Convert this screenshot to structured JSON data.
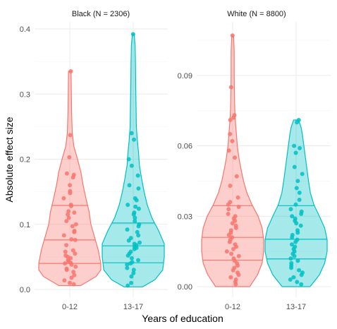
{
  "chart_data": {
    "type": "violin",
    "xlabel": "Years of education",
    "ylabel": "Absolute effect size",
    "categories": [
      "0-12",
      "13-17"
    ],
    "colors": {
      "0-12": "#F8766D",
      "13-17": "#00BFC4"
    },
    "fill_alpha": 0.35,
    "grid": true,
    "quantile_lines": [
      0.25,
      0.5,
      0.75
    ],
    "panels": [
      {
        "title": "Black (N = 2306)",
        "ylim": [
          0,
          0.4
        ],
        "yticks": [
          0.0,
          0.1,
          0.2,
          0.3,
          0.4
        ],
        "ytick_labels": [
          "0.0",
          "0.1",
          "0.2",
          "0.3",
          "0.4"
        ],
        "groups": [
          {
            "category": "0-12",
            "quantiles": [
              0.04,
              0.076,
              0.129
            ],
            "density": [
              [
                0.006,
                0.35
              ],
              [
                0.02,
                0.85
              ],
              [
                0.03,
                1.0
              ],
              [
                0.04,
                1.0
              ],
              [
                0.06,
                0.92
              ],
              [
                0.08,
                0.8
              ],
              [
                0.1,
                0.68
              ],
              [
                0.12,
                0.62
              ],
              [
                0.14,
                0.52
              ],
              [
                0.16,
                0.43
              ],
              [
                0.18,
                0.36
              ],
              [
                0.2,
                0.25
              ],
              [
                0.22,
                0.13
              ],
              [
                0.24,
                0.08
              ],
              [
                0.27,
                0.06
              ],
              [
                0.3,
                0.05
              ],
              [
                0.335,
                0.04
              ]
            ],
            "points": [
              0.335,
              0.237,
              0.203,
              0.178,
              0.176,
              0.172,
              0.16,
              0.151,
              0.148,
              0.14,
              0.13,
              0.128,
              0.12,
              0.118,
              0.115,
              0.11,
              0.105,
              0.1,
              0.097,
              0.09,
              0.088,
              0.083,
              0.077,
              0.076,
              0.068,
              0.06,
              0.058,
              0.055,
              0.052,
              0.05,
              0.048,
              0.045,
              0.043,
              0.041,
              0.04,
              0.038,
              0.035,
              0.032,
              0.03,
              0.027,
              0.022,
              0.018,
              0.014,
              0.01,
              0.008
            ]
          },
          {
            "category": "13-17",
            "quantiles": [
              0.041,
              0.067,
              0.102
            ],
            "density": [
              [
                0.004,
                0.3
              ],
              [
                0.015,
                0.7
              ],
              [
                0.03,
                0.95
              ],
              [
                0.05,
                1.0
              ],
              [
                0.07,
                1.0
              ],
              [
                0.09,
                0.82
              ],
              [
                0.11,
                0.6
              ],
              [
                0.13,
                0.45
              ],
              [
                0.15,
                0.35
              ],
              [
                0.17,
                0.27
              ],
              [
                0.19,
                0.2
              ],
              [
                0.21,
                0.17
              ],
              [
                0.23,
                0.13
              ],
              [
                0.25,
                0.1
              ],
              [
                0.28,
                0.09
              ],
              [
                0.31,
                0.08
              ],
              [
                0.35,
                0.07
              ],
              [
                0.375,
                0.06
              ],
              [
                0.392,
                0.03
              ]
            ],
            "points": [
              0.392,
              0.24,
              0.23,
              0.2,
              0.19,
              0.175,
              0.16,
              0.155,
              0.14,
              0.137,
              0.13,
              0.127,
              0.124,
              0.118,
              0.115,
              0.11,
              0.105,
              0.1,
              0.097,
              0.092,
              0.088,
              0.083,
              0.079,
              0.075,
              0.072,
              0.07,
              0.068,
              0.066,
              0.064,
              0.062,
              0.058,
              0.055,
              0.052,
              0.048,
              0.045,
              0.042,
              0.04,
              0.038,
              0.033,
              0.03,
              0.025,
              0.02,
              0.01,
              0.006
            ]
          }
        ]
      },
      {
        "title": "White (N = 8800)",
        "ylim": [
          0,
          0.108
        ],
        "yticks": [
          0.0,
          0.03,
          0.06,
          0.09
        ],
        "ytick_labels": [
          "0.00",
          "0.03",
          "0.06",
          "0.09"
        ],
        "groups": [
          {
            "category": "0-12",
            "quantiles": [
              0.0113,
              0.021,
              0.0345
            ],
            "density": [
              [
                0.0,
                0.55
              ],
              [
                0.005,
                0.8
              ],
              [
                0.01,
                0.95
              ],
              [
                0.015,
                1.0
              ],
              [
                0.02,
                1.0
              ],
              [
                0.025,
                0.95
              ],
              [
                0.03,
                0.82
              ],
              [
                0.035,
                0.62
              ],
              [
                0.04,
                0.46
              ],
              [
                0.045,
                0.35
              ],
              [
                0.05,
                0.27
              ],
              [
                0.055,
                0.2
              ],
              [
                0.06,
                0.15
              ],
              [
                0.065,
                0.12
              ],
              [
                0.07,
                0.09
              ],
              [
                0.075,
                0.07
              ],
              [
                0.08,
                0.06
              ],
              [
                0.09,
                0.05
              ],
              [
                0.1,
                0.05
              ],
              [
                0.107,
                0.03
              ]
            ],
            "points": [
              0.107,
              0.085,
              0.073,
              0.072,
              0.071,
              0.065,
              0.062,
              0.058,
              0.055,
              0.047,
              0.043,
              0.038,
              0.036,
              0.035,
              0.034,
              0.033,
              0.031,
              0.03,
              0.029,
              0.028,
              0.027,
              0.026,
              0.025,
              0.024,
              0.023,
              0.022,
              0.021,
              0.02,
              0.019,
              0.018,
              0.017,
              0.016,
              0.015,
              0.014,
              0.013,
              0.012,
              0.011,
              0.01,
              0.009,
              0.008,
              0.007,
              0.006,
              0.005,
              0.004,
              0.003,
              0.002,
              0.001
            ]
          },
          {
            "category": "13-17",
            "quantiles": [
              0.0118,
              0.0202,
              0.0345
            ],
            "density": [
              [
                0.0,
                0.45
              ],
              [
                0.005,
                0.75
              ],
              [
                0.01,
                0.92
              ],
              [
                0.015,
                1.0
              ],
              [
                0.02,
                1.0
              ],
              [
                0.025,
                0.92
              ],
              [
                0.03,
                0.75
              ],
              [
                0.035,
                0.57
              ],
              [
                0.04,
                0.46
              ],
              [
                0.045,
                0.4
              ],
              [
                0.05,
                0.35
              ],
              [
                0.055,
                0.3
              ],
              [
                0.06,
                0.25
              ],
              [
                0.065,
                0.2
              ],
              [
                0.068,
                0.16
              ],
              [
                0.071,
                0.08
              ]
            ],
            "points": [
              0.071,
              0.07,
              0.06,
              0.059,
              0.057,
              0.051,
              0.048,
              0.045,
              0.042,
              0.04,
              0.037,
              0.035,
              0.033,
              0.032,
              0.031,
              0.03,
              0.029,
              0.028,
              0.027,
              0.026,
              0.024,
              0.023,
              0.022,
              0.021,
              0.02,
              0.019,
              0.018,
              0.017,
              0.016,
              0.015,
              0.014,
              0.013,
              0.012,
              0.011,
              0.01,
              0.009,
              0.008,
              0.007,
              0.006,
              0.005,
              0.004,
              0.003,
              0.002,
              0.001
            ]
          }
        ]
      }
    ]
  }
}
